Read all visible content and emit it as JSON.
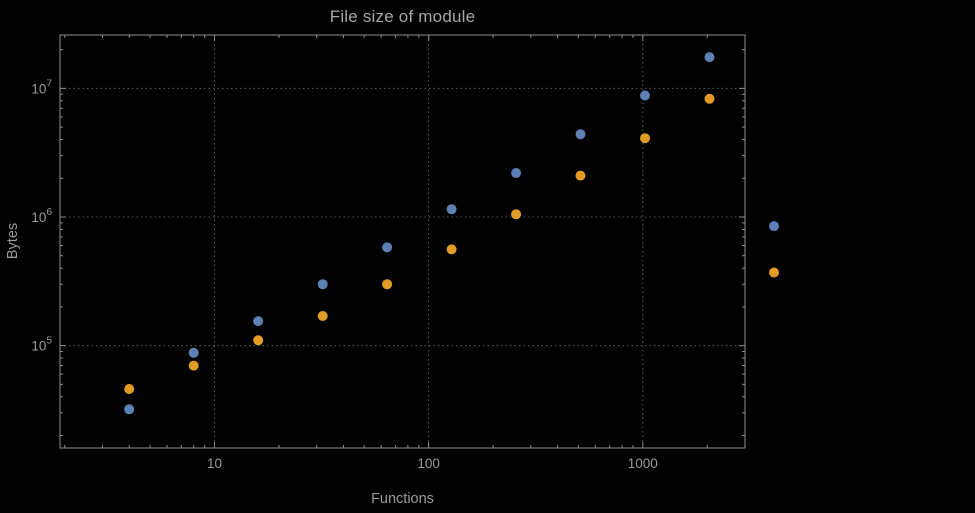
{
  "colors": {
    "background": "#000000",
    "frame": "#8f8f8f",
    "grid": "#5c5c5c",
    "tick_text": "#9b9b9b",
    "title_text": "#a6a6a6",
    "series_blue": "#5E81B5",
    "series_orange": "#E09C24"
  },
  "chart_data": {
    "type": "scatter",
    "title": "File size of module",
    "xlabel": "Functions",
    "ylabel": "Bytes",
    "x_scale": "log",
    "y_scale": "log",
    "xlim": [
      1.9,
      3000
    ],
    "ylim": [
      16000,
      26000000
    ],
    "x_ticks": [
      10,
      100,
      1000
    ],
    "x_tick_labels": [
      "10",
      "100",
      "1000"
    ],
    "y_ticks": [
      100000,
      1000000,
      10000000
    ],
    "y_tick_mantissa": "10",
    "y_tick_exponents": [
      "5",
      "6",
      "7"
    ],
    "grid": "dotted",
    "legend": "none",
    "frame": true,
    "marker_radius": 5,
    "series": [
      {
        "name": "series-blue",
        "color": "#5E81B5",
        "points": [
          [
            4,
            32000
          ],
          [
            8,
            88000
          ],
          [
            16,
            155000
          ],
          [
            32,
            300000
          ],
          [
            64,
            580000
          ],
          [
            128,
            1150000
          ],
          [
            256,
            2200000
          ],
          [
            512,
            4400000
          ],
          [
            1024,
            8800000
          ],
          [
            2048,
            17500000
          ],
          [
            4096,
            850000
          ]
        ]
      },
      {
        "name": "series-orange",
        "color": "#E09C24",
        "points": [
          [
            4,
            46000
          ],
          [
            8,
            70000
          ],
          [
            16,
            110000
          ],
          [
            32,
            170000
          ],
          [
            64,
            300000
          ],
          [
            128,
            560000
          ],
          [
            256,
            1050000
          ],
          [
            512,
            2100000
          ],
          [
            1024,
            4100000
          ],
          [
            2048,
            8300000
          ],
          [
            4096,
            370000
          ]
        ]
      }
    ]
  }
}
